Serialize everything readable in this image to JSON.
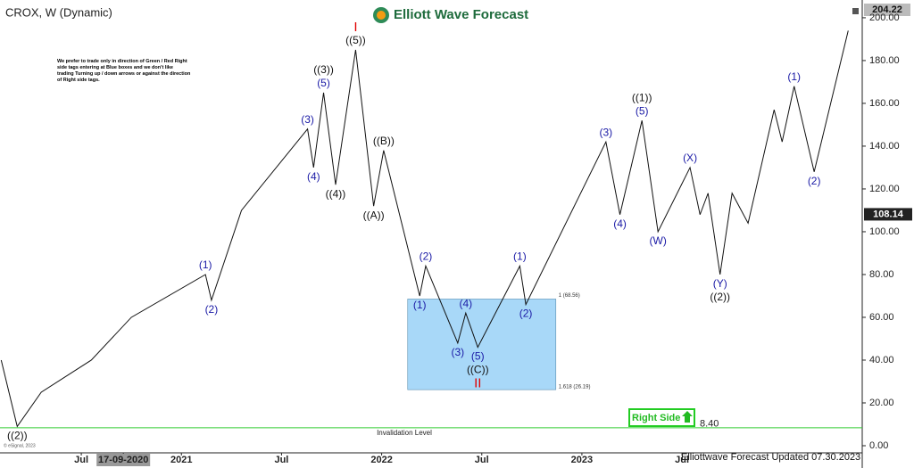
{
  "chart_data": {
    "type": "line",
    "title": "CROX, W (Dynamic)",
    "logo": "Elliott Wave Forecast",
    "note": "We prefer to trade only in direction of Green / Red Right side tags entering at Blue boxes and we don't like trading Turning up / down arrows or against the direction of Right side tags.",
    "footer": "Elliottwave Forecast Updated 07.30.2023",
    "copyright": "© eSignal, 2023",
    "top_price": "204.22",
    "last_price": {
      "value": 108.14,
      "label": "108.14"
    },
    "right_side": "Right Side",
    "xlim": [
      2020.094,
      2024.4
    ],
    "ylim": [
      -4.17,
      205.8
    ],
    "xticks": [
      {
        "value": 2020.5,
        "label": "Jul"
      },
      {
        "value": 2020.71,
        "label": "17-09-2020"
      },
      {
        "value": 2021,
        "label": "2021"
      },
      {
        "value": 2021.5,
        "label": "Jul"
      },
      {
        "value": 2022,
        "label": "2022"
      },
      {
        "value": 2022.5,
        "label": "Jul"
      },
      {
        "value": 2023,
        "label": "2023"
      },
      {
        "value": 2023.5,
        "label": "Jul"
      }
    ],
    "yticks": [
      {
        "value": 0,
        "label": "0.00"
      },
      {
        "value": 20,
        "label": "20.00"
      },
      {
        "value": 40,
        "label": "40.00"
      },
      {
        "value": 60,
        "label": "60.00"
      },
      {
        "value": 80,
        "label": "80.00"
      },
      {
        "value": 100,
        "label": "100.00"
      },
      {
        "value": 120,
        "label": "120.00"
      },
      {
        "value": 140,
        "label": "140.00"
      },
      {
        "value": 160,
        "label": "160.00"
      },
      {
        "value": 180,
        "label": "180.00"
      },
      {
        "value": 200,
        "label": "200.00"
      }
    ],
    "series": [
      {
        "name": "Price",
        "color": "#111111",
        "x": [
          2020.1,
          2020.18,
          2020.3,
          2020.55,
          2020.75,
          2021.12,
          2021.15,
          2021.3,
          2021.63,
          2021.66,
          2021.71,
          2021.77,
          2021.87,
          2021.96,
          2022.01,
          2022.19,
          2022.22,
          2022.38,
          2022.42,
          2022.48,
          2022.69,
          2022.72,
          2023.12,
          2023.19,
          2023.3,
          2023.38,
          2023.54,
          2023.59
        ],
        "values": [
          40,
          9,
          25,
          40,
          60,
          80,
          68,
          110,
          148,
          130,
          165,
          122,
          185,
          112,
          138,
          70,
          84,
          48,
          62,
          46,
          84,
          66,
          142,
          108,
          152,
          100,
          130,
          108
        ],
        "labels": [
          null,
          [
            "((2))"
          ],
          null,
          null,
          null,
          [
            "(1)"
          ],
          [
            "(2)"
          ],
          null,
          [
            "(3)"
          ],
          [
            "(4)"
          ],
          [
            "((3))",
            "(5)"
          ],
          [
            "((4))"
          ],
          [
            "I",
            "((5))"
          ],
          [
            "((A))"
          ],
          [
            "((B))"
          ],
          [
            "(1)"
          ],
          [
            "(2)"
          ],
          [
            "(3)"
          ],
          [
            "(4)"
          ],
          [
            "(5)",
            "((C))",
            "II"
          ],
          [
            "(1)"
          ],
          [
            "(2)"
          ],
          [
            "(3)"
          ],
          [
            "(4)"
          ],
          [
            "((1))",
            "(5)"
          ],
          [
            "(W)"
          ],
          [
            "(X)"
          ],
          null
        ]
      },
      {
        "name": "Projection",
        "color": "#111111",
        "x": [
          2023.59,
          2023.63,
          2023.69,
          2023.75,
          2023.83,
          2023.96,
          2024.0,
          2024.06,
          2024.16,
          2024.33
        ],
        "values": [
          108,
          118,
          80,
          118,
          104,
          157,
          142,
          168,
          128,
          194
        ],
        "labels": [
          null,
          null,
          [
            "(Y)",
            "((2))"
          ],
          null,
          null,
          null,
          null,
          [
            "(1)"
          ],
          [
            "(2)"
          ],
          null
        ]
      }
    ],
    "box": {
      "x": [
        2022.13,
        2022.87
      ],
      "top": 68.56,
      "bottom": 26.19,
      "color": "#a8d8f8",
      "top_label": "1 (68.56)",
      "bottom_label": "1.618 (26.19)"
    },
    "invalidation": {
      "value": 8.4,
      "label": "Invalidation Level",
      "value_label": "8.40",
      "color": "#33cc33"
    }
  }
}
